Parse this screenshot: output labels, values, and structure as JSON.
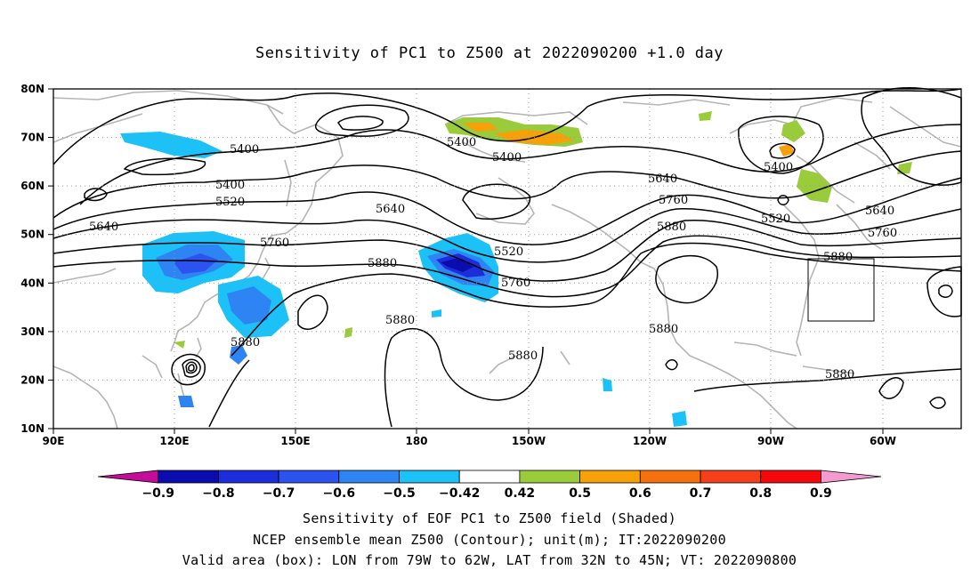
{
  "title": "Sensitivity of PC1 to Z500 at 2022090200 +1.0 day",
  "map": {
    "lon_range": [
      "90E",
      "44W"
    ],
    "lat_range": [
      "10N",
      "80N"
    ],
    "lon_labels": [
      "90E",
      "120E",
      "150E",
      "180",
      "150W",
      "120W",
      "90W",
      "60W"
    ],
    "lat_labels": [
      "10N",
      "20N",
      "30N",
      "40N",
      "50N",
      "60N",
      "70N",
      "80N"
    ],
    "contour_labels": [
      "5400",
      "5400",
      "5400",
      "5400",
      "5400",
      "5520",
      "5520",
      "5520",
      "5640",
      "5640",
      "5640",
      "5640",
      "5760",
      "5760",
      "5760",
      "5760",
      "5880",
      "5880",
      "5880",
      "5880",
      "5880",
      "5880",
      "5880",
      "5880"
    ],
    "valid_box": {
      "lon_west": "79W",
      "lon_east": "62W",
      "lat_south": "32N",
      "lat_north": "45N"
    }
  },
  "colorbar": {
    "labels": [
      "-0.9",
      "-0.8",
      "-0.7",
      "-0.6",
      "-0.5",
      "-0.42",
      "0.42",
      "0.5",
      "0.6",
      "0.7",
      "0.8",
      "0.9"
    ],
    "colors": [
      "#c40b9a",
      "#0a0cae",
      "#1d2ddc",
      "#2c52f0",
      "#2d84f2",
      "#1cc2f7",
      "#ffffff",
      "#9acb3a",
      "#f7a00a",
      "#f5700f",
      "#f5401b",
      "#f5090d",
      "#f59ad0"
    ]
  },
  "captions": {
    "line1": "Sensitivity of EOF PC1 to Z500 field (Shaded)",
    "line2": "NCEP ensemble mean Z500 (Contour); unit(m); IT:2022090200",
    "line3": "Valid area (box): LON from 79W to 62W, LAT from 32N to 45N; VT: 2022090800"
  }
}
